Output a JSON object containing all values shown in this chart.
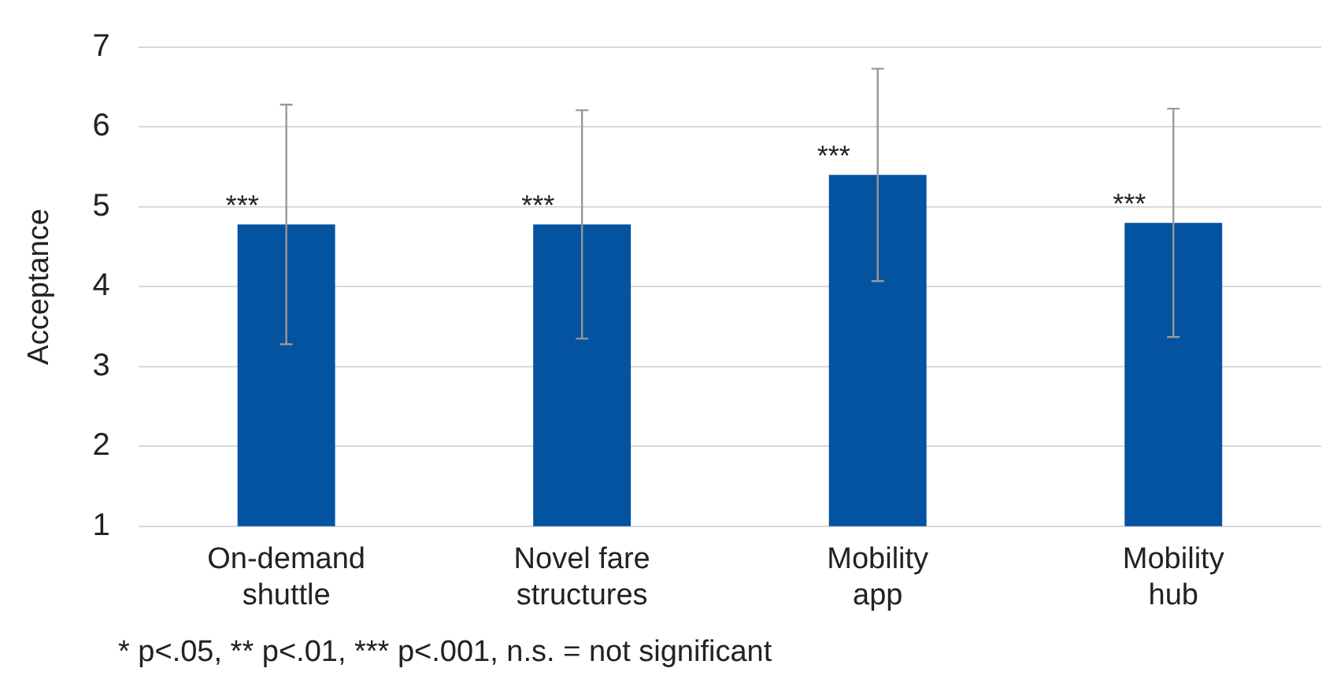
{
  "chart_data": {
    "type": "bar",
    "ylabel": "Acceptance",
    "categories": [
      "On-demand shuttle",
      "Novel fare structures",
      "Mobility app",
      "Mobility hub"
    ],
    "values": [
      4.78,
      4.78,
      5.4,
      4.8
    ],
    "errors": [
      1.5,
      1.43,
      1.33,
      1.43
    ],
    "color": "#0353a0",
    "ylim": [
      1,
      7
    ],
    "yticks": [
      1,
      2,
      3,
      4,
      5,
      6,
      7
    ],
    "grid": "y",
    "annotations": [
      {
        "text": "***",
        "x": "On-demand shuttle",
        "y": 4.78
      },
      {
        "text": "***",
        "x": "Novel fare structures",
        "y": 4.78
      },
      {
        "text": "***",
        "x": "Mobility app",
        "y": 5.4
      },
      {
        "text": "***",
        "x": "Mobility hub",
        "y": 4.8
      },
      "* p<.05, ** p<.01, *** p<.001, n.s. = not significant"
    ]
  }
}
